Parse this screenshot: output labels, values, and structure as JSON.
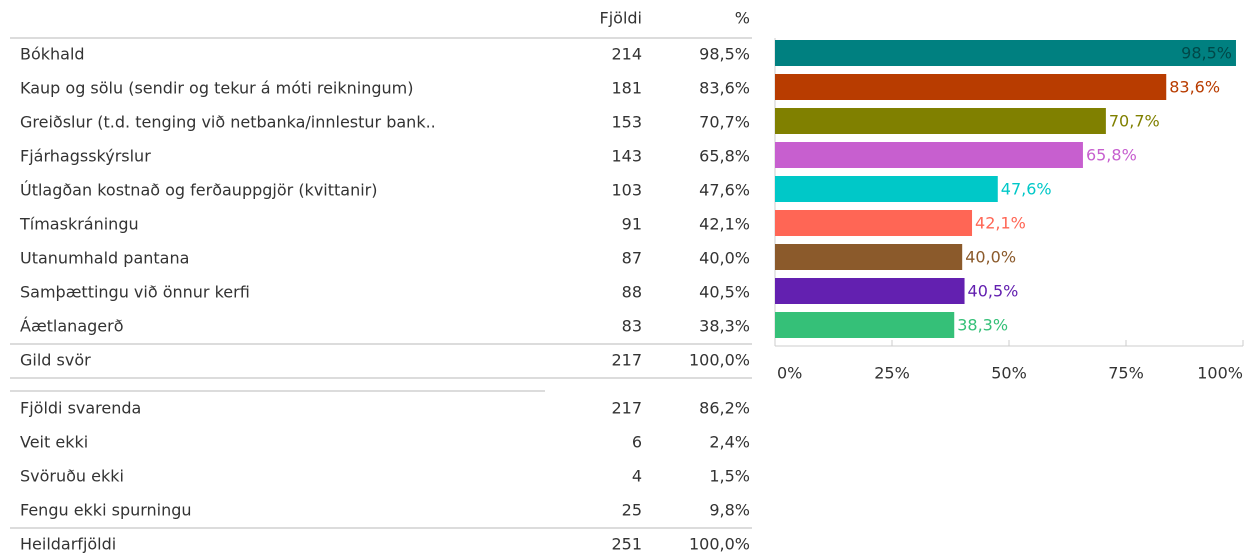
{
  "table": {
    "columns": [
      "Fjöldi",
      "%"
    ],
    "rows": [
      [
        "Bókhald",
        "214",
        "98,5%"
      ],
      [
        "Kaup og sölu (sendir og tekur á móti reikningum)",
        "181",
        "83,6%"
      ],
      [
        "Greiðslur (t.d. tenging við netbanka/innlestur bank..",
        "153",
        "70,7%"
      ],
      [
        "Fjárhagsskýrslur",
        "143",
        "65,8%"
      ],
      [
        "Útlagðan kostnað og ferðauppgjör (kvittanir)",
        "103",
        "47,6%"
      ],
      [
        "Tímaskráningu",
        "91",
        "42,1%"
      ],
      [
        "Utanumhald pantana",
        "87",
        "40,0%"
      ],
      [
        "Samþættingu við önnur kerfi",
        "88",
        "40,5%"
      ],
      [
        "Áætlanagerð",
        "83",
        "38,3%"
      ]
    ],
    "valid": [
      "Gild svör",
      "217",
      "100,0%"
    ],
    "details": [
      [
        "Fjöldi svarenda",
        "217",
        "86,2%"
      ],
      [
        "Veit ekki",
        "6",
        "2,4%"
      ],
      [
        "Svöruðu ekki",
        "4",
        "1,5%"
      ],
      [
        "Fengu ekki spurningu",
        "25",
        "9,8%"
      ]
    ],
    "total": [
      "Heildarfjöldi",
      "251",
      "100,0%"
    ]
  },
  "chart_data": {
    "type": "bar",
    "orientation": "horizontal",
    "values": [
      98.5,
      83.6,
      70.7,
      65.8,
      47.6,
      42.1,
      40.0,
      40.5,
      38.3
    ],
    "value_labels": [
      "98,5%",
      "83,6%",
      "70,7%",
      "65,8%",
      "47,6%",
      "42,1%",
      "40,0%",
      "40,5%",
      "38,3%"
    ],
    "colors": [
      "#008080",
      "#b83c00",
      "#808000",
      "#c75fcf",
      "#00c8c8",
      "#ff6655",
      "#8b5a2b",
      "#6320b0",
      "#35c078"
    ],
    "xlim": [
      0,
      100
    ],
    "xticks": [
      {
        "value": 0,
        "label": "0%"
      },
      {
        "value": 25,
        "label": "25%"
      },
      {
        "value": 50,
        "label": "50%"
      },
      {
        "value": 75,
        "label": "75%"
      },
      {
        "value": 100,
        "label": "100%"
      }
    ]
  }
}
